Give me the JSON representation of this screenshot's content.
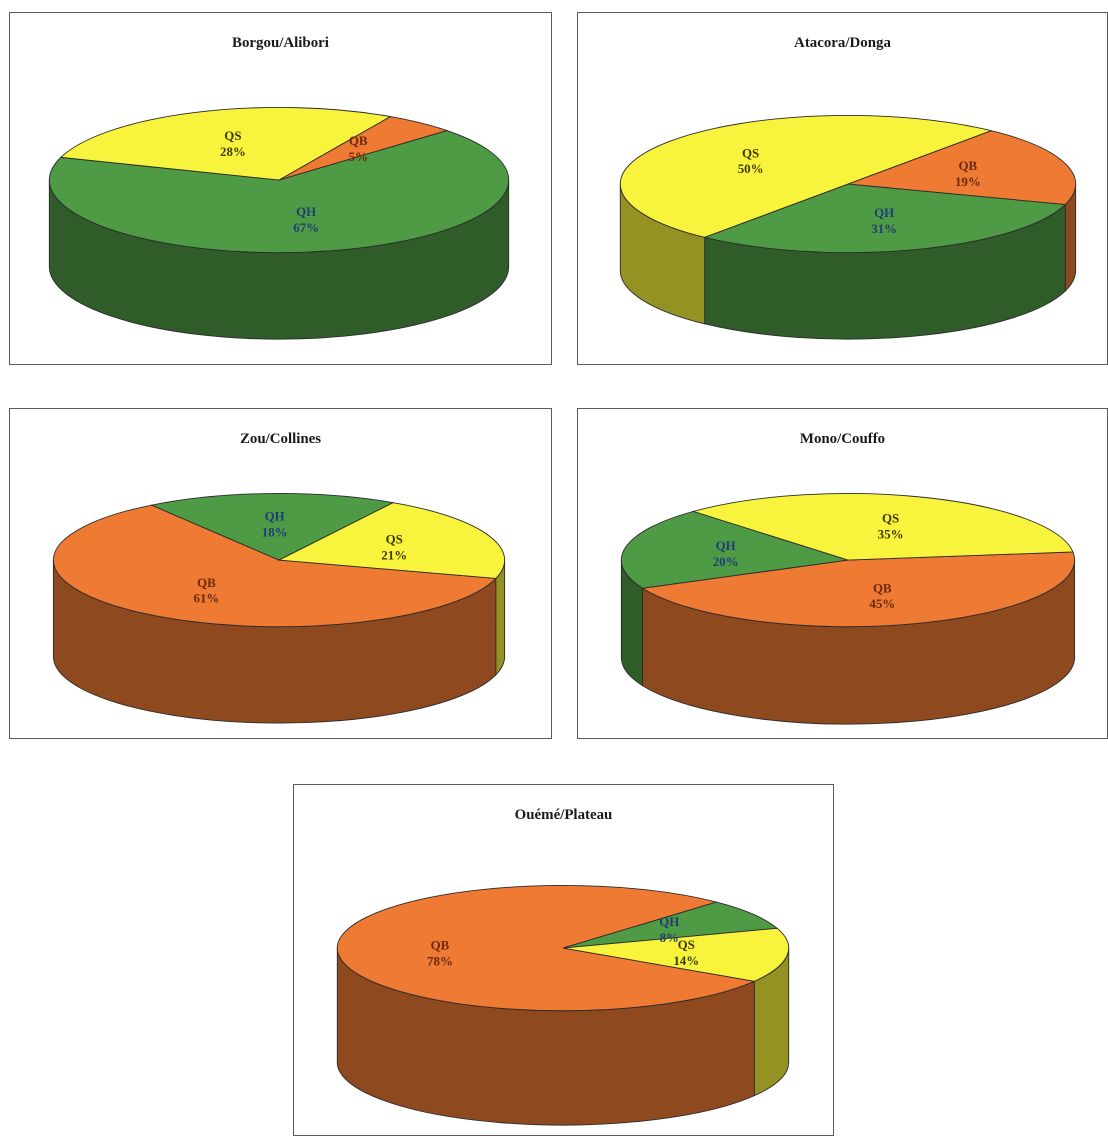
{
  "colors": {
    "QB": "#EE7A33",
    "QH": "#4E9A45",
    "QS": "#F8F33C"
  },
  "chart_data": [
    {
      "type": "pie",
      "title": "Borgou/Alibori",
      "series": [
        {
          "name": "QB",
          "value": 5,
          "label": "5%"
        },
        {
          "name": "QH",
          "value": 67,
          "label": "67%"
        },
        {
          "name": "QS",
          "value": 28,
          "label": "28%"
        }
      ]
    },
    {
      "type": "pie",
      "title": "Atacora/Donga",
      "series": [
        {
          "name": "QB",
          "value": 19,
          "label": "19%"
        },
        {
          "name": "QH",
          "value": 31,
          "label": "31%"
        },
        {
          "name": "QS",
          "value": 50,
          "label": "50%"
        }
      ]
    },
    {
      "type": "pie",
      "title": "Zou/Collines",
      "series": [
        {
          "name": "QB",
          "value": 61,
          "label": "61%"
        },
        {
          "name": "QH",
          "value": 18,
          "label": "18%"
        },
        {
          "name": "QS",
          "value": 21,
          "label": "21%"
        }
      ]
    },
    {
      "type": "pie",
      "title": "Mono/Couffo",
      "series": [
        {
          "name": "QB",
          "value": 45,
          "label": "45%"
        },
        {
          "name": "QH",
          "value": 20,
          "label": "20%"
        },
        {
          "name": "QS",
          "value": 35,
          "label": "35%"
        }
      ]
    },
    {
      "type": "pie",
      "title": "Ouémé/Plateau",
      "series": [
        {
          "name": "QB",
          "value": 78,
          "label": "78%"
        },
        {
          "name": "QH",
          "value": 8,
          "label": "8%"
        },
        {
          "name": "QS",
          "value": 14,
          "label": "14%"
        }
      ]
    }
  ]
}
